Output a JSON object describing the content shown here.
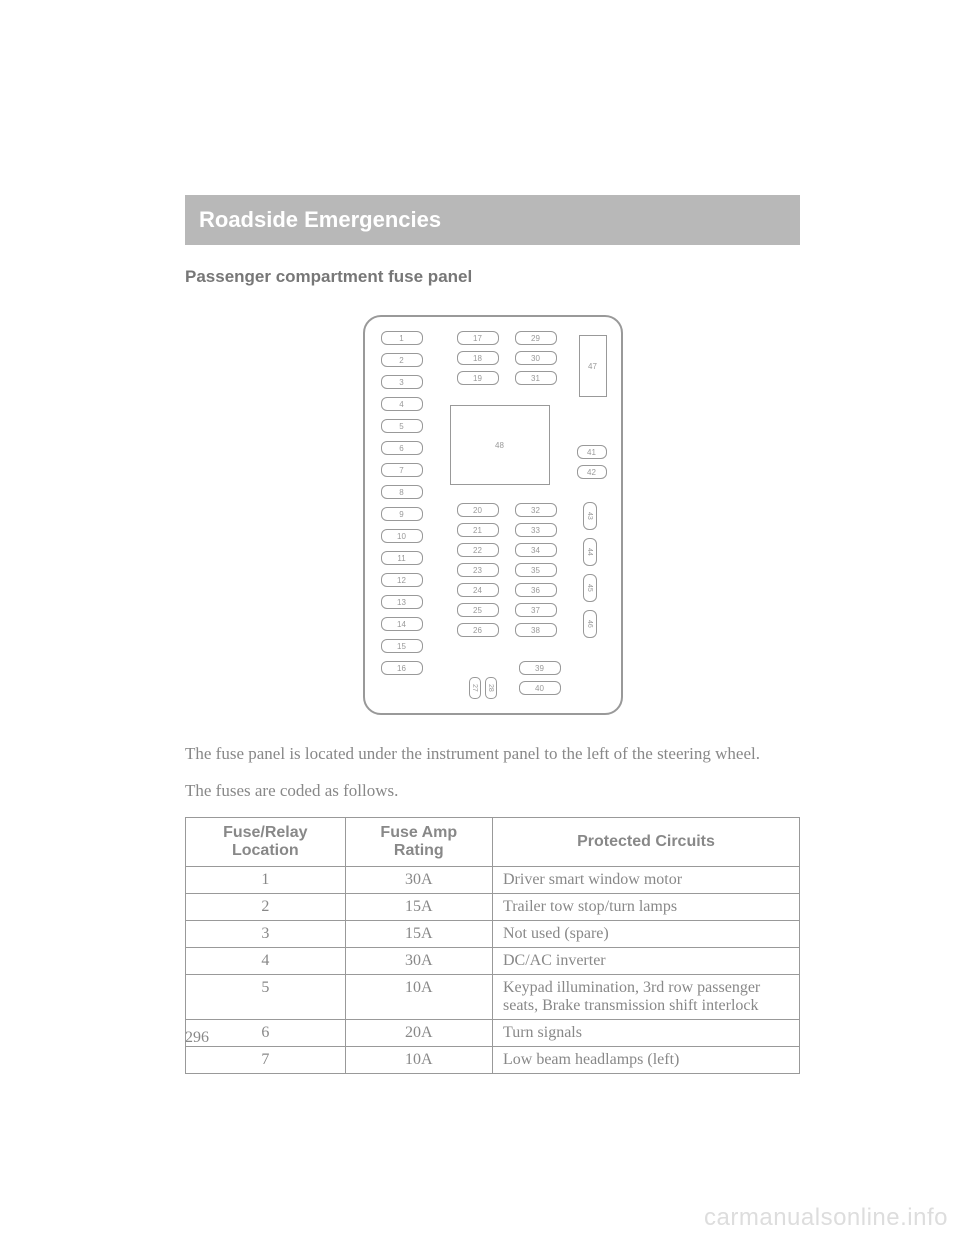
{
  "chapter": "Roadside Emergencies",
  "section": "Passenger compartment fuse panel",
  "diagram": {
    "col1": [
      "1",
      "2",
      "3",
      "4",
      "5",
      "6",
      "7",
      "8",
      "9",
      "10",
      "11",
      "12",
      "13",
      "14",
      "15",
      "16"
    ],
    "col2_top": [
      "17",
      "18",
      "19"
    ],
    "col2_bot": [
      "20",
      "21",
      "22",
      "23",
      "24",
      "25",
      "26"
    ],
    "col3_top": [
      "29",
      "30",
      "31"
    ],
    "col3_bot": [
      "32",
      "33",
      "34",
      "35",
      "36",
      "37",
      "38"
    ],
    "big_box": "48",
    "top_right": "47",
    "right_small": [
      "41",
      "42"
    ],
    "vert": [
      "43",
      "44",
      "45",
      "46"
    ],
    "bottom_pair": [
      "27",
      "28"
    ],
    "bottom_right": [
      "39",
      "40"
    ]
  },
  "para1": "The fuse panel is located under the instrument panel to the left of the steering wheel.",
  "para2": "The fuses are coded as follows.",
  "table": {
    "headers": [
      "Fuse/Relay Location",
      "Fuse Amp Rating",
      "Protected Circuits"
    ],
    "rows": [
      [
        "1",
        "30A",
        "Driver smart window motor"
      ],
      [
        "2",
        "15A",
        "Trailer tow stop/turn lamps"
      ],
      [
        "3",
        "15A",
        "Not used (spare)"
      ],
      [
        "4",
        "30A",
        "DC/AC inverter"
      ],
      [
        "5",
        "10A",
        "Keypad illumination, 3rd row passenger seats, Brake transmission shift interlock"
      ],
      [
        "6",
        "20A",
        "Turn signals"
      ],
      [
        "7",
        "10A",
        "Low beam headlamps (left)"
      ]
    ]
  },
  "page_number": "296",
  "watermark": "carmanualsonline.info",
  "colors": {
    "bar_bg": "#b8b8b8",
    "bar_text": "#ffffff",
    "text": "#888888",
    "border": "#999999",
    "watermark": "#dddddd"
  }
}
